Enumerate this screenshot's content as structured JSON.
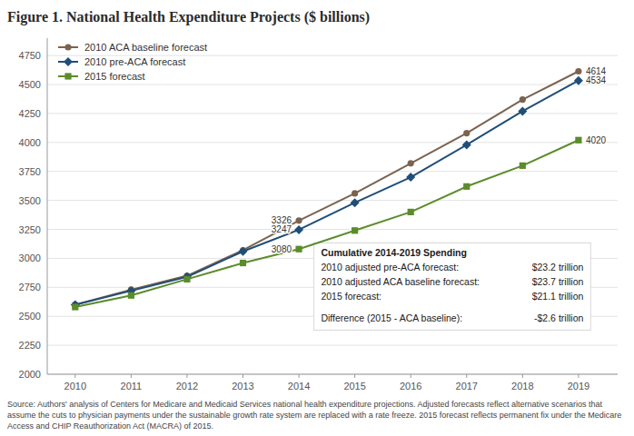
{
  "chart_data": {
    "type": "line",
    "title": "Figure 1. National Health Expenditure Projects ($ billions)",
    "x": [
      2010,
      2011,
      2012,
      2013,
      2014,
      2015,
      2016,
      2017,
      2018,
      2019
    ],
    "series": [
      {
        "name": "2010 ACA baseline forecast",
        "color": "#7B6350",
        "marker": "circle",
        "values": [
          2600,
          2730,
          2850,
          3070,
          3326,
          3560,
          3820,
          4080,
          4370,
          4614
        ]
      },
      {
        "name": "2010 pre-ACA forecast",
        "color": "#1F4E79",
        "marker": "diamond",
        "values": [
          2600,
          2720,
          2840,
          3060,
          3247,
          3480,
          3700,
          3980,
          4270,
          4534
        ]
      },
      {
        "name": "2015 forecast",
        "color": "#5B8C2A",
        "marker": "square",
        "values": [
          2580,
          2680,
          2820,
          2960,
          3080,
          3240,
          3400,
          3620,
          3800,
          4020
        ]
      }
    ],
    "xlim": [
      2009.5,
      2019.7
    ],
    "xticks": [
      2010,
      2011,
      2012,
      2013,
      2014,
      2015,
      2016,
      2017,
      2018,
      2019
    ],
    "ylim": [
      2000,
      4900
    ],
    "yticks": [
      2000,
      2250,
      2500,
      2750,
      3000,
      3250,
      3500,
      3750,
      4000,
      4250,
      4500,
      4750
    ],
    "grid": true,
    "legend": "upper left",
    "annotations": [
      {
        "x": 2014,
        "y": 3326,
        "label": "3326"
      },
      {
        "x": 2014,
        "y": 3247,
        "label": "3247"
      },
      {
        "x": 2014,
        "y": 3080,
        "label": "3080"
      },
      {
        "x": 2019,
        "y": 4614,
        "label": "4614"
      },
      {
        "x": 2019,
        "y": 4534,
        "label": "4534"
      },
      {
        "x": 2019,
        "y": 4020,
        "label": "4020"
      }
    ],
    "text_box": {
      "title": "Cumulative 2014-2019 Spending",
      "rows": [
        {
          "label": "2010 adjusted pre-ACA forecast:",
          "value": "$23.2 trillion"
        },
        {
          "label": "2010 adjusted ACA baseline forecast:",
          "value": "$23.7 trillion"
        },
        {
          "label": "2015 forecast:",
          "value": "$21.1 trillion"
        },
        {
          "label": "Difference (2015 - ACA baseline):",
          "value": "-$2.6 trillion"
        }
      ]
    },
    "source": "Source: Authors' analysis of Centers for Medicare and Medicaid Services national health expenditure projections. Adjusted forecasts reflect alternative scenarios that assume the cuts to physician payments under the sustainable growth rate system are replaced with a rate freeze. 2015 forecast reflects permanent fix under the Medicare Access and CHIP Reauthorization Act (MACRA) of 2015."
  }
}
